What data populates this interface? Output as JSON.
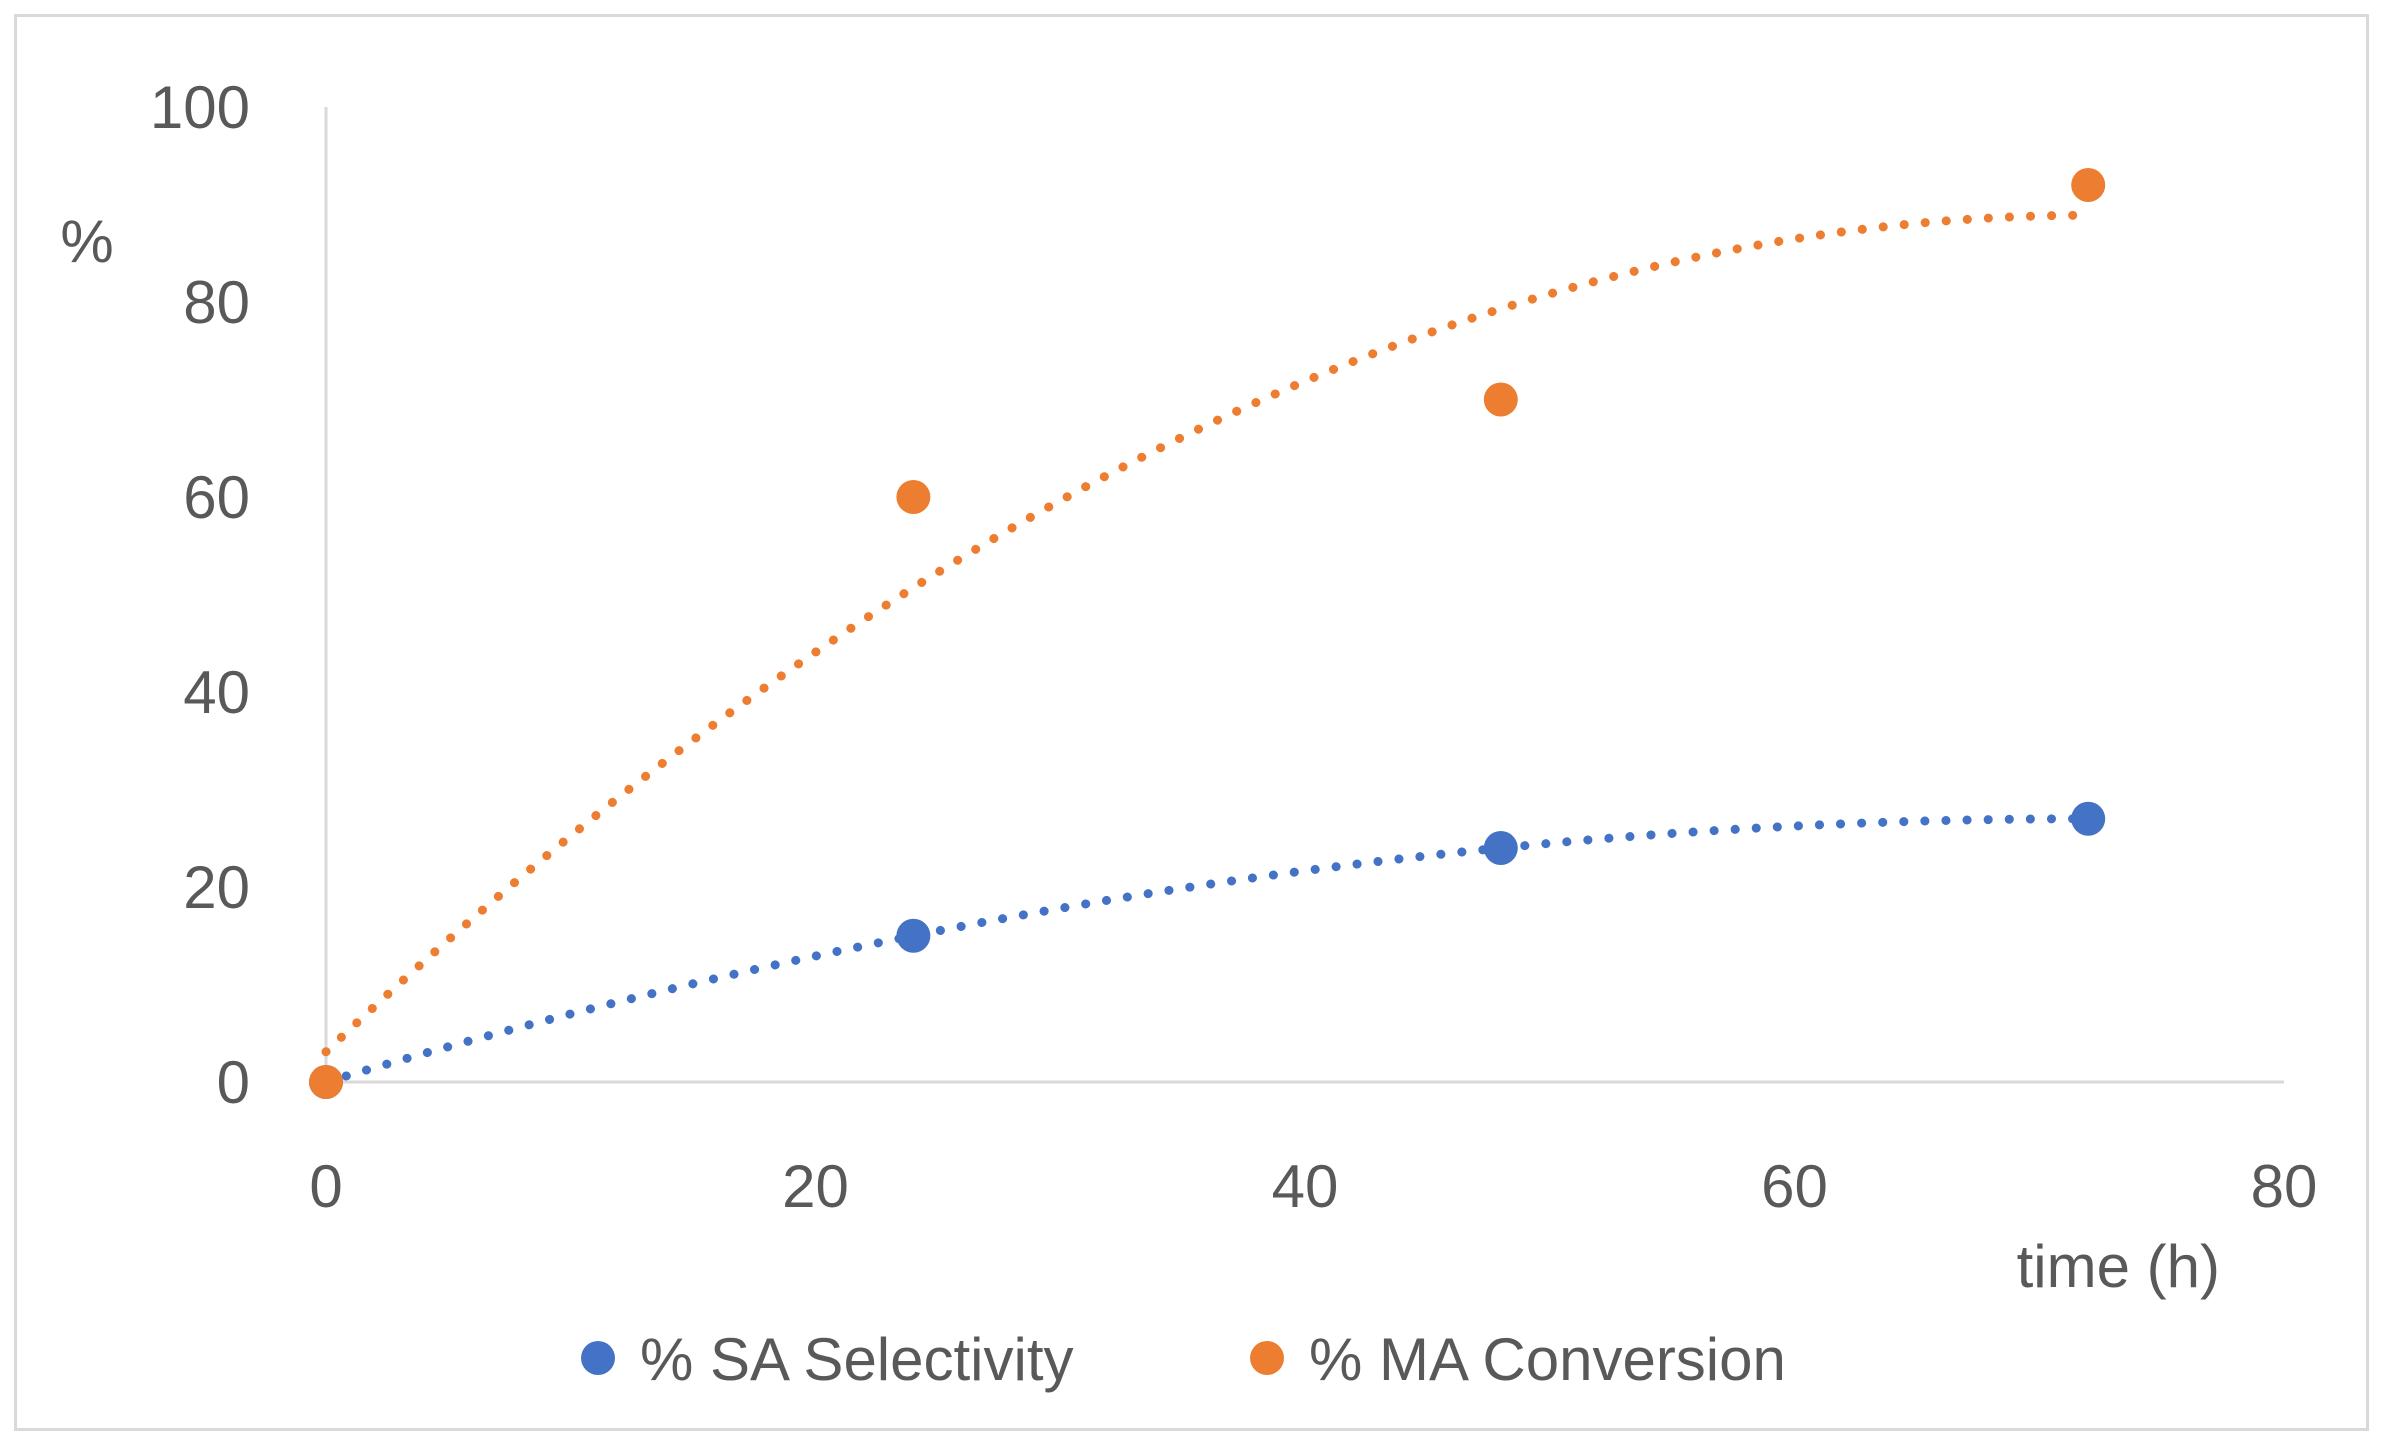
{
  "chart_data": {
    "type": "scatter",
    "title": "",
    "xlabel": "time (h)",
    "ylabel": "%",
    "xlim": [
      0,
      80
    ],
    "ylim": [
      0,
      100
    ],
    "xticks": [
      "0",
      "20",
      "40",
      "60",
      "80"
    ],
    "yticks": [
      "0",
      "20",
      "40",
      "60",
      "80",
      "100"
    ],
    "grid": false,
    "legend_position": "bottom",
    "series": [
      {
        "name": "% SA Selectivity",
        "color": "#4472C4",
        "x": [
          0,
          24,
          48,
          72
        ],
        "y": [
          0,
          15,
          24,
          27
        ],
        "trendline": "dotted polynomial"
      },
      {
        "name": "% MA Conversion",
        "color": "#ED7D31",
        "x": [
          0,
          24,
          48,
          72
        ],
        "y": [
          0,
          60,
          70,
          92
        ],
        "trendline": "dotted polynomial"
      }
    ]
  }
}
